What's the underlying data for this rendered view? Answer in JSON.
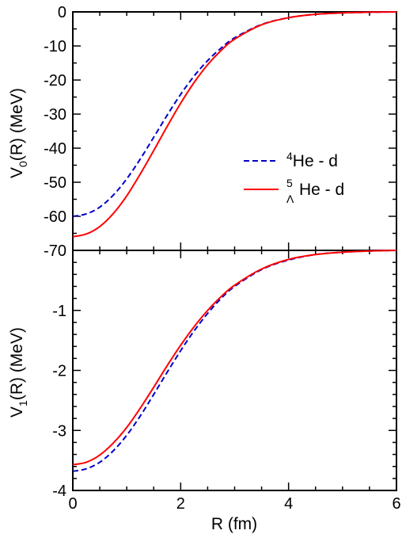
{
  "chart_data": [
    {
      "type": "line",
      "panel": "top",
      "ylabel_main": "V",
      "ylabel_sub": "0",
      "ylabel_tail": "(R)   (MeV)",
      "xlim": [
        0,
        6
      ],
      "ylim": [
        -70,
        0
      ],
      "yticks": [
        "0",
        "-10",
        "-20",
        "-30",
        "-40",
        "-50",
        "-60",
        "-70"
      ],
      "ytick_values": [
        0,
        -10,
        -20,
        -30,
        -40,
        -50,
        -60,
        -70
      ],
      "grid": false,
      "legend_position": "right",
      "series": [
        {
          "name_sup": "4",
          "name_main": "He - d",
          "color": "#0000cc",
          "style": "dashed",
          "x": [
            0,
            0.25,
            0.5,
            0.75,
            1.0,
            1.25,
            1.5,
            1.75,
            2.0,
            2.25,
            2.5,
            2.75,
            3.0,
            3.5,
            4.0,
            4.5,
            5.0,
            5.5,
            6.0
          ],
          "y": [
            -60,
            -59.3,
            -57.3,
            -53.8,
            -49.0,
            -43.2,
            -36.8,
            -30.3,
            -24.2,
            -18.8,
            -14.3,
            -10.6,
            -7.6,
            -3.7,
            -1.7,
            -0.7,
            -0.3,
            -0.1,
            0
          ]
        },
        {
          "name_sup": "5",
          "name_sub": "Λ",
          "name_main": "He - d",
          "color": "#ff0000",
          "style": "solid",
          "x": [
            0,
            0.25,
            0.5,
            0.75,
            1.0,
            1.25,
            1.5,
            1.75,
            2.0,
            2.25,
            2.5,
            2.75,
            3.0,
            3.5,
            4.0,
            4.5,
            5.0,
            5.5,
            6.0
          ],
          "y": [
            -66,
            -65.2,
            -63.0,
            -59.2,
            -54.0,
            -47.6,
            -40.7,
            -33.6,
            -26.8,
            -20.7,
            -15.5,
            -11.3,
            -8.0,
            -3.8,
            -1.7,
            -0.7,
            -0.3,
            -0.1,
            0
          ]
        }
      ]
    },
    {
      "type": "line",
      "panel": "bottom",
      "xlabel": "R   (fm)",
      "ylabel_main": "V",
      "ylabel_sub": "1",
      "ylabel_tail": "(R)   (MeV)",
      "xlim": [
        0,
        6
      ],
      "ylim": [
        -4,
        0
      ],
      "xticks": [
        "0",
        "2",
        "4",
        "6"
      ],
      "xtick_values": [
        0,
        2,
        4,
        6
      ],
      "yticks": [
        "-1",
        "-2",
        "-3",
        "-4"
      ],
      "ytick_values": [
        -1,
        -2,
        -3,
        -4
      ],
      "grid": false,
      "series": [
        {
          "color": "#0000cc",
          "style": "dashed",
          "x": [
            0,
            0.25,
            0.5,
            0.75,
            1.0,
            1.25,
            1.5,
            1.75,
            2.0,
            2.25,
            2.5,
            2.75,
            3.0,
            3.5,
            4.0,
            4.5,
            5.0,
            5.5,
            6.0
          ],
          "y": [
            -3.68,
            -3.64,
            -3.53,
            -3.34,
            -3.08,
            -2.76,
            -2.4,
            -2.03,
            -1.67,
            -1.34,
            -1.05,
            -0.8,
            -0.6,
            -0.32,
            -0.16,
            -0.07,
            -0.03,
            -0.01,
            0
          ]
        },
        {
          "color": "#ff0000",
          "style": "solid",
          "x": [
            0,
            0.25,
            0.5,
            0.75,
            1.0,
            1.25,
            1.5,
            1.75,
            2.0,
            2.25,
            2.5,
            2.75,
            3.0,
            3.5,
            4.0,
            4.5,
            5.0,
            5.5,
            6.0
          ],
          "y": [
            -3.57,
            -3.53,
            -3.41,
            -3.21,
            -2.95,
            -2.63,
            -2.28,
            -1.92,
            -1.58,
            -1.27,
            -1.0,
            -0.77,
            -0.58,
            -0.31,
            -0.15,
            -0.07,
            -0.03,
            -0.01,
            0
          ]
        }
      ]
    }
  ]
}
